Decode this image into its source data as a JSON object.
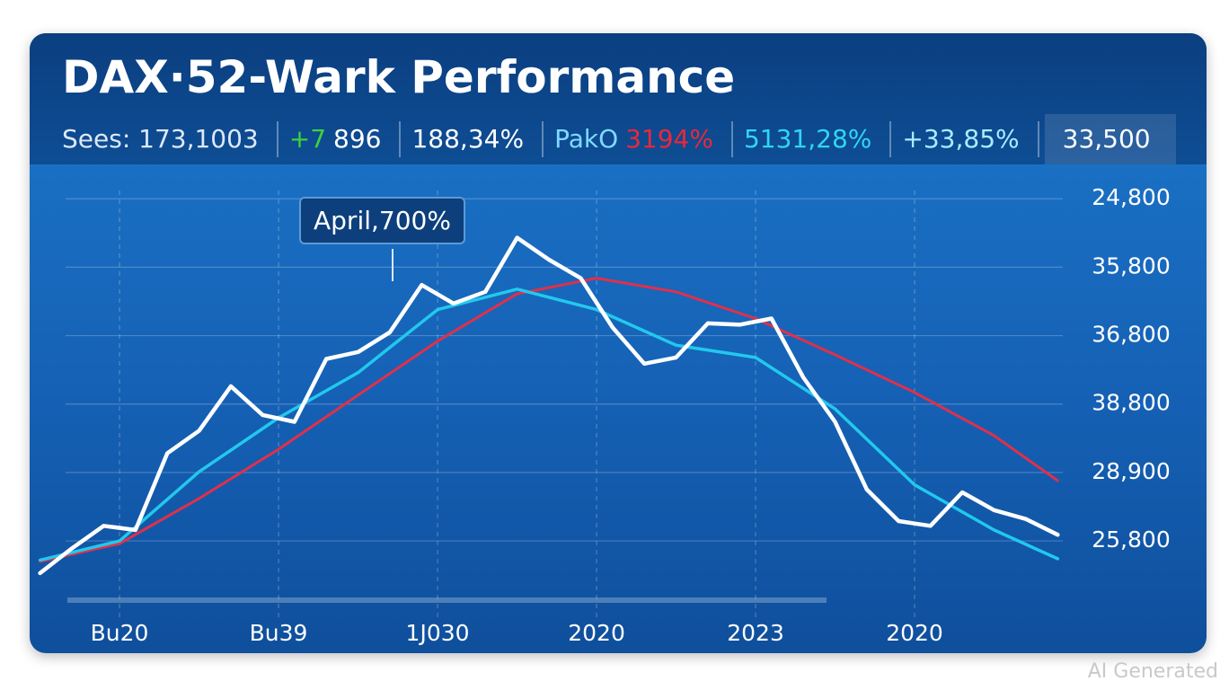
{
  "chart_data": {
    "type": "line",
    "title": "DAX·52-Wark Performance",
    "stats": [
      {
        "parts": [
          {
            "text": "Sees: 173,1003",
            "color": "#dce8f6"
          }
        ]
      },
      {
        "parts": [
          {
            "text": "+7",
            "color": "#3cd23c"
          },
          {
            "text": "896",
            "color": "#ffffff"
          }
        ]
      },
      {
        "parts": [
          {
            "text": "188,34%",
            "color": "#ffffff"
          }
        ]
      },
      {
        "parts": [
          {
            "text": "PakO",
            "color": "#7fd9ff"
          },
          {
            "text": "3194%",
            "color": "#e8283c"
          }
        ]
      },
      {
        "parts": [
          {
            "text": "5131,28%",
            "color": "#2fd6f2"
          }
        ]
      },
      {
        "parts": [
          {
            "text": "+33,85%",
            "color": "#a8ecff"
          }
        ]
      },
      {
        "parts": [
          {
            "text": "33,500",
            "color": "#ffffff"
          }
        ]
      }
    ],
    "annotation": "April,700%",
    "xlim": [
      -0.554,
      5.915
    ],
    "xticks": [
      {
        "value": 0,
        "label": "Bu20"
      },
      {
        "value": 1,
        "label": "Bu39"
      },
      {
        "value": 2,
        "label": "1J030"
      },
      {
        "value": 3,
        "label": "2020"
      },
      {
        "value": 4,
        "label": "2023"
      },
      {
        "value": 5,
        "label": "2020"
      }
    ],
    "ylim": [
      -0.8,
      5.2
    ],
    "yticks": [
      {
        "value": 5,
        "label": "24,800"
      },
      {
        "value": 4,
        "label": "35,800"
      },
      {
        "value": 3,
        "label": "36,800"
      },
      {
        "value": 2,
        "label": "38,800"
      },
      {
        "value": 1,
        "label": "28,900"
      },
      {
        "value": 0,
        "label": "25,800"
      }
    ],
    "grid": true,
    "series": [
      {
        "color": "#e0304a",
        "width": 3,
        "x": [
          -0.5,
          0,
          0.5,
          1,
          1.5,
          2,
          2.5,
          3,
          3.5,
          4,
          4.5,
          5,
          5.5,
          5.9
        ],
        "values": [
          -0.3,
          -0.04,
          0.62,
          1.34,
          2.13,
          2.92,
          3.61,
          3.84,
          3.64,
          3.25,
          2.72,
          2.17,
          1.54,
          0.88
        ]
      },
      {
        "color": "#22c8ee",
        "width": 3.5,
        "x": [
          -0.5,
          0,
          0.5,
          1,
          1.5,
          2,
          2.5,
          3,
          3.5,
          4,
          4.5,
          5,
          5.5,
          5.9
        ],
        "values": [
          -0.28,
          0,
          1.01,
          1.8,
          2.46,
          3.38,
          3.68,
          3.38,
          2.86,
          2.68,
          1.93,
          0.82,
          0.16,
          -0.26
        ]
      },
      {
        "color": "#ffffff",
        "width": 4.5,
        "x": [
          -0.5,
          -0.3,
          -0.1,
          0.1,
          0.3,
          0.5,
          0.7,
          0.9,
          1.1,
          1.3,
          1.5,
          1.7,
          1.9,
          2.1,
          2.3,
          2.5,
          2.7,
          2.9,
          3.1,
          3.3,
          3.5,
          3.7,
          3.9,
          4.1,
          4.3,
          4.5,
          4.7,
          4.9,
          5.1,
          5.3,
          5.5,
          5.7,
          5.9
        ],
        "values": [
          -0.47,
          -0.11,
          0.22,
          0.16,
          1.28,
          1.61,
          2.26,
          1.84,
          1.74,
          2.66,
          2.76,
          3.05,
          3.74,
          3.47,
          3.64,
          4.43,
          4.11,
          3.84,
          3.12,
          2.59,
          2.68,
          3.18,
          3.16,
          3.25,
          2.39,
          1.74,
          0.75,
          0.29,
          0.22,
          0.71,
          0.45,
          0.32,
          0.09
        ]
      }
    ]
  },
  "watermark": "AI Generated"
}
